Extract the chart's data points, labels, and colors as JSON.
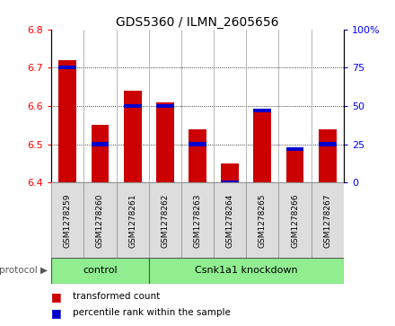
{
  "title": "GDS5360 / ILMN_2605656",
  "samples": [
    "GSM1278259",
    "GSM1278260",
    "GSM1278261",
    "GSM1278262",
    "GSM1278263",
    "GSM1278264",
    "GSM1278265",
    "GSM1278266",
    "GSM1278267"
  ],
  "transformed_counts": [
    6.72,
    6.55,
    6.64,
    6.61,
    6.54,
    6.45,
    6.59,
    6.49,
    6.54
  ],
  "percentile_ranks": [
    75,
    25,
    50,
    50,
    25,
    0,
    47,
    22,
    25
  ],
  "ylim": [
    6.4,
    6.8
  ],
  "y2lim": [
    0,
    100
  ],
  "yticks": [
    6.4,
    6.5,
    6.6,
    6.7,
    6.8
  ],
  "y2ticks": [
    0,
    25,
    50,
    75,
    100
  ],
  "bar_color": "#cc0000",
  "percentile_color": "#0000cc",
  "control_color": "#90ee90",
  "control_indices": [
    0,
    1,
    2
  ],
  "knockdown_indices": [
    3,
    4,
    5,
    6,
    7,
    8
  ],
  "protocol_label": "protocol",
  "control_label": "control",
  "knockdown_label": "Csnk1a1 knockdown",
  "legend_bar": "transformed count",
  "legend_pct": "percentile rank within the sample",
  "background_color": "#ffffff"
}
